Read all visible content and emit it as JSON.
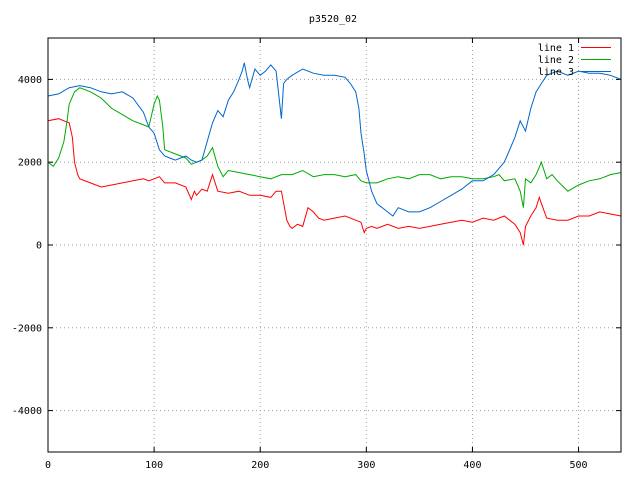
{
  "chart_data": {
    "type": "line",
    "title": "p3520_02",
    "xlabel": "",
    "ylabel": "",
    "xlim": [
      0,
      540
    ],
    "ylim": [
      -5000,
      5000
    ],
    "xticks": [
      0,
      100,
      200,
      300,
      400,
      500
    ],
    "yticks": [
      -4000,
      -2000,
      0,
      2000,
      4000
    ],
    "grid": true,
    "legend_position": "top-right",
    "series": [
      {
        "name": "line 1",
        "color": "#ff0000",
        "x": [
          0,
          10,
          15,
          20,
          23,
          25,
          28,
          30,
          40,
          50,
          60,
          70,
          80,
          90,
          95,
          100,
          105,
          110,
          120,
          130,
          135,
          138,
          140,
          145,
          150,
          155,
          160,
          170,
          180,
          190,
          200,
          210,
          215,
          220,
          225,
          228,
          230,
          235,
          240,
          245,
          250,
          255,
          260,
          270,
          280,
          290,
          295,
          298,
          300,
          305,
          310,
          320,
          330,
          340,
          350,
          360,
          370,
          380,
          390,
          400,
          410,
          420,
          430,
          440,
          445,
          448,
          450,
          455,
          460,
          463,
          465,
          470,
          480,
          490,
          500,
          510,
          520,
          530,
          540
        ],
        "values": [
          3000,
          3050,
          3000,
          2950,
          2600,
          2000,
          1700,
          1600,
          1500,
          1400,
          1450,
          1500,
          1550,
          1600,
          1550,
          1600,
          1650,
          1500,
          1500,
          1400,
          1100,
          1300,
          1200,
          1350,
          1300,
          1700,
          1300,
          1250,
          1300,
          1200,
          1200,
          1150,
          1300,
          1300,
          600,
          450,
          400,
          500,
          450,
          900,
          800,
          650,
          600,
          650,
          700,
          600,
          550,
          300,
          400,
          450,
          400,
          500,
          400,
          450,
          400,
          450,
          500,
          550,
          600,
          550,
          650,
          600,
          700,
          500,
          300,
          0,
          450,
          700,
          900,
          1150,
          1000,
          650,
          600,
          600,
          700,
          700,
          800,
          750,
          700
        ]
      },
      {
        "name": "line 2",
        "color": "#00aa00",
        "x": [
          0,
          5,
          10,
          15,
          18,
          20,
          25,
          30,
          40,
          50,
          60,
          70,
          80,
          90,
          95,
          100,
          103,
          105,
          108,
          110,
          120,
          130,
          135,
          140,
          145,
          150,
          155,
          160,
          165,
          170,
          180,
          190,
          200,
          210,
          220,
          230,
          240,
          250,
          260,
          270,
          280,
          290,
          295,
          300,
          310,
          320,
          330,
          340,
          350,
          360,
          370,
          380,
          390,
          400,
          410,
          420,
          425,
          430,
          440,
          445,
          448,
          450,
          455,
          460,
          465,
          470,
          475,
          480,
          490,
          500,
          510,
          520,
          530,
          540
        ],
        "values": [
          2000,
          1900,
          2100,
          2500,
          3000,
          3400,
          3700,
          3800,
          3700,
          3550,
          3300,
          3150,
          3000,
          2900,
          2850,
          3400,
          3600,
          3500,
          2900,
          2300,
          2200,
          2100,
          1950,
          2000,
          2050,
          2150,
          2350,
          1900,
          1650,
          1800,
          1750,
          1700,
          1650,
          1600,
          1700,
          1700,
          1800,
          1650,
          1700,
          1700,
          1650,
          1700,
          1550,
          1500,
          1500,
          1600,
          1650,
          1600,
          1700,
          1700,
          1600,
          1650,
          1650,
          1600,
          1600,
          1650,
          1700,
          1550,
          1600,
          1300,
          900,
          1600,
          1500,
          1700,
          2000,
          1600,
          1700,
          1550,
          1300,
          1450,
          1550,
          1600,
          1700,
          1750
        ]
      },
      {
        "name": "line 3",
        "color": "#0066cc",
        "x": [
          0,
          10,
          20,
          30,
          40,
          50,
          60,
          70,
          80,
          90,
          95,
          100,
          105,
          110,
          115,
          120,
          130,
          135,
          140,
          145,
          150,
          155,
          160,
          165,
          170,
          175,
          180,
          183,
          185,
          188,
          190,
          195,
          200,
          205,
          210,
          215,
          220,
          222,
          225,
          230,
          240,
          250,
          260,
          270,
          280,
          285,
          290,
          293,
          295,
          298,
          300,
          305,
          310,
          320,
          325,
          330,
          340,
          350,
          360,
          370,
          380,
          390,
          400,
          410,
          420,
          430,
          440,
          445,
          450,
          455,
          460,
          465,
          470,
          480,
          490,
          500,
          510,
          520,
          530,
          540
        ],
        "values": [
          3600,
          3650,
          3800,
          3850,
          3800,
          3700,
          3650,
          3700,
          3550,
          3200,
          2850,
          2700,
          2300,
          2150,
          2100,
          2050,
          2150,
          2050,
          2000,
          2050,
          2500,
          2950,
          3250,
          3100,
          3500,
          3700,
          4000,
          4200,
          4400,
          4000,
          3800,
          4250,
          4100,
          4200,
          4350,
          4200,
          3050,
          3900,
          4000,
          4100,
          4250,
          4150,
          4100,
          4100,
          4050,
          3900,
          3700,
          3300,
          2700,
          2200,
          1800,
          1300,
          1000,
          800,
          700,
          900,
          800,
          800,
          900,
          1050,
          1200,
          1350,
          1550,
          1550,
          1700,
          2000,
          2600,
          3000,
          2750,
          3300,
          3700,
          3900,
          4100,
          4200,
          4100,
          4200,
          4150,
          4150,
          4100,
          4000
        ]
      }
    ]
  }
}
